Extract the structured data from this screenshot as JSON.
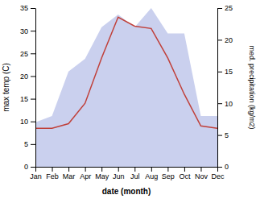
{
  "chart_data": {
    "type": "line",
    "x_label": "date (month)",
    "y_label": "max temp (C)",
    "y2_label": "med. precipitation (kg/m2)",
    "x": [
      1,
      2,
      3,
      4,
      5,
      6,
      7,
      8,
      9,
      10,
      11,
      12
    ],
    "xlim": [
      1,
      12
    ],
    "xticks": [
      {
        "value": 1,
        "label": "Jan"
      },
      {
        "value": 2,
        "label": "Feb"
      },
      {
        "value": 3,
        "label": "Mar"
      },
      {
        "value": 4,
        "label": "Apr"
      },
      {
        "value": 5,
        "label": "May"
      },
      {
        "value": 6,
        "label": "Jun"
      },
      {
        "value": 7,
        "label": "Jul"
      },
      {
        "value": 8,
        "label": "Aug"
      },
      {
        "value": 9,
        "label": "Sep"
      },
      {
        "value": 10,
        "label": "Oct"
      },
      {
        "value": 11,
        "label": "Nov"
      },
      {
        "value": 12,
        "label": "Dec"
      }
    ],
    "ylim": [
      0,
      35
    ],
    "yticks": [
      0,
      5,
      10,
      15,
      20,
      25,
      30,
      35
    ],
    "y2lim": [
      0,
      25
    ],
    "y2ticks": [
      0,
      5,
      10,
      15,
      20,
      25
    ],
    "grid": false,
    "series": [
      {
        "type": "line",
        "color": "#c0403a",
        "values": [
          8.5,
          8.5,
          9.5,
          14.0,
          24.0,
          33.0,
          31.0,
          30.5,
          24.0,
          16.0,
          9.0,
          8.5
        ]
      },
      {
        "type": "area",
        "axis": "y2",
        "color": "#b8c0e8",
        "values": [
          7.0,
          8.0,
          15.0,
          17.0,
          22.0,
          24.0,
          22.0,
          25.0,
          21.0,
          21.0,
          8.0,
          8.0
        ]
      }
    ]
  }
}
